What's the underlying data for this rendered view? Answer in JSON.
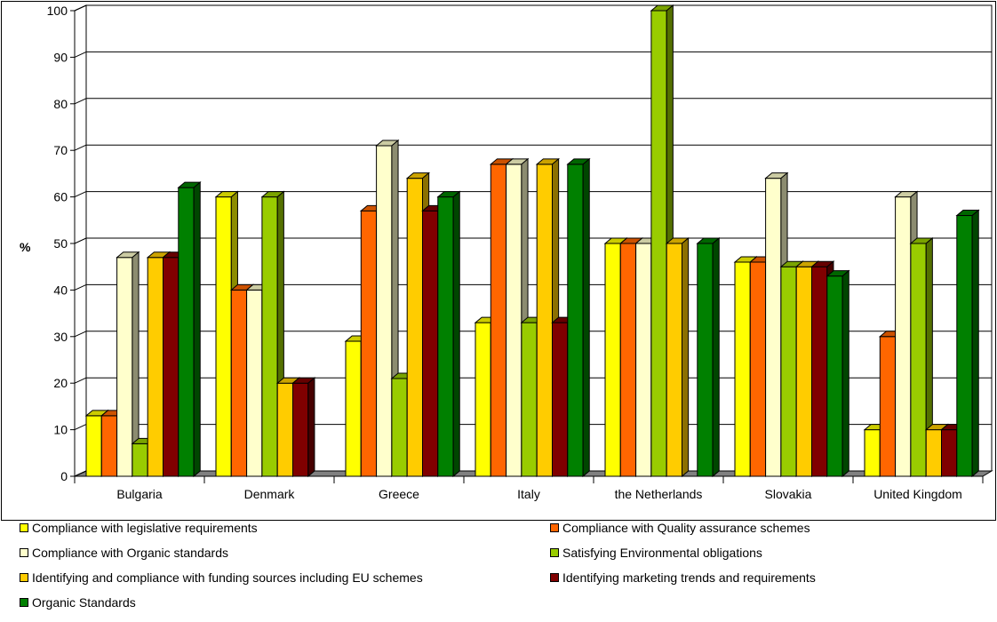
{
  "chart_data": {
    "type": "bar",
    "ylabel": "%",
    "ylim": [
      0,
      100
    ],
    "y_ticks": [
      0,
      10,
      20,
      30,
      40,
      50,
      60,
      70,
      80,
      90,
      100
    ],
    "grid": true,
    "legend_position": "bottom",
    "categories": [
      "Bulgaria",
      "Denmark",
      "Greece",
      "Italy",
      "the Netherlands",
      "Slovakia",
      "United Kingdom"
    ],
    "series": [
      {
        "name": "Compliance with legislative requirements",
        "color": "#FFFF00",
        "values": [
          13,
          60,
          29,
          33,
          50,
          46,
          10
        ]
      },
      {
        "name": "Compliance with Quality assurance schemes",
        "color": "#FF6600",
        "values": [
          13,
          40,
          57,
          67,
          50,
          46,
          30
        ]
      },
      {
        "name": "Compliance with Organic standards",
        "color": "#FFFFCC",
        "values": [
          47,
          40,
          71,
          67,
          50,
          64,
          60
        ]
      },
      {
        "name": "Satisfying Environmental obligations",
        "color": "#99CC00",
        "values": [
          7,
          60,
          21,
          33,
          100,
          45,
          50
        ]
      },
      {
        "name": "Identifying and compliance with funding sources including EU schemes",
        "color": "#FFCC00",
        "values": [
          47,
          20,
          64,
          67,
          50,
          45,
          10
        ]
      },
      {
        "name": "Identifying marketing trends and requirements",
        "color": "#800000",
        "values": [
          47,
          20,
          57,
          33,
          0,
          45,
          10
        ]
      },
      {
        "name": "Organic Standards",
        "color": "#008000",
        "values": [
          62,
          0,
          60,
          67,
          50,
          43,
          56
        ]
      }
    ]
  }
}
